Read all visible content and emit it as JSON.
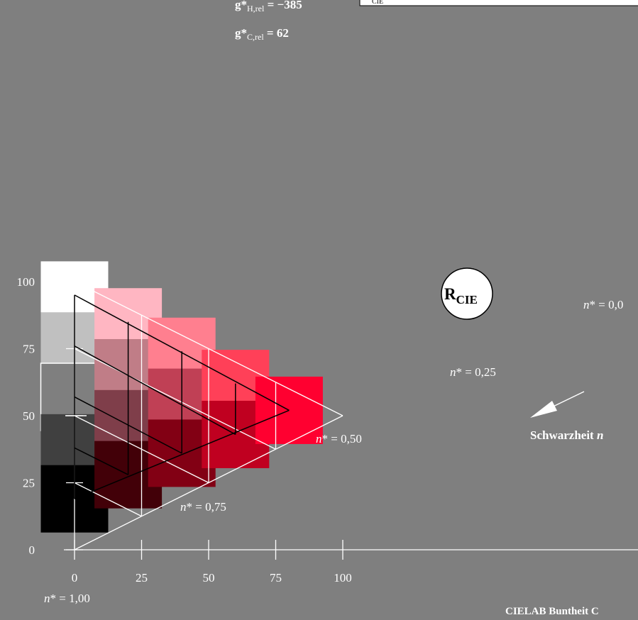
{
  "chart_data": {
    "type": "diagram",
    "x_ticks": [
      "0",
      "25",
      "50",
      "75",
      "100"
    ],
    "y_ticks": [
      "0",
      "25",
      "50",
      "75",
      "100"
    ],
    "n_labels": {
      "n100": {
        "n": "n",
        "star": "* = ",
        "val": "1,00"
      },
      "n075": {
        "n": "n",
        "star": "* = ",
        "val": "0,75"
      },
      "n050": {
        "n": "n",
        "star": "* = ",
        "val": "0,50"
      },
      "n025": {
        "n": "n",
        "star": "* = ",
        "val": "0,25"
      },
      "n000": {
        "n": "n",
        "star": "* = ",
        "val": "0,0"
      }
    },
    "header": {
      "gH": {
        "g": "g*",
        "sub": "H,rel",
        "rest": " = −385"
      },
      "gC": {
        "g": "g*",
        "sub": "C,rel",
        "rest": " = 62"
      },
      "box_sub": "CIE"
    },
    "marker": {
      "main": "R",
      "sub": "CIE"
    },
    "arrow_label": {
      "text": "Schwarzheit ",
      "var": "n"
    },
    "footer": "CIELAB Buntheit C",
    "colors": {
      "background": "#7f7f7f",
      "line_white": "#ffffff",
      "line_black": "#000000",
      "target_red": "#ff0030"
    },
    "swatches": [
      {
        "c": 0,
        "l": 95,
        "color": "#ffffff"
      },
      {
        "c": 0,
        "l": 76,
        "color": "#c0c0c0"
      },
      {
        "c": 0,
        "l": 57,
        "color": "#7f7f7f",
        "outline": true
      },
      {
        "c": 0,
        "l": 38,
        "color": "#404040"
      },
      {
        "c": 0,
        "l": 19,
        "color": "#000000"
      },
      {
        "c": 20,
        "l": 85,
        "color": "#ffb6c2"
      },
      {
        "c": 20,
        "l": 66,
        "color": "#c07d87"
      },
      {
        "c": 20,
        "l": 47,
        "color": "#7f3e4a"
      },
      {
        "c": 20,
        "l": 28,
        "color": "#420008"
      },
      {
        "c": 40,
        "l": 74,
        "color": "#ff7f8f"
      },
      {
        "c": 40,
        "l": 55,
        "color": "#c04055"
      },
      {
        "c": 40,
        "l": 36,
        "color": "#820014"
      },
      {
        "c": 60,
        "l": 62,
        "color": "#ff4058"
      },
      {
        "c": 60,
        "l": 43,
        "color": "#c00020"
      },
      {
        "c": 80,
        "l": 52,
        "color": "#ff0030"
      }
    ]
  }
}
